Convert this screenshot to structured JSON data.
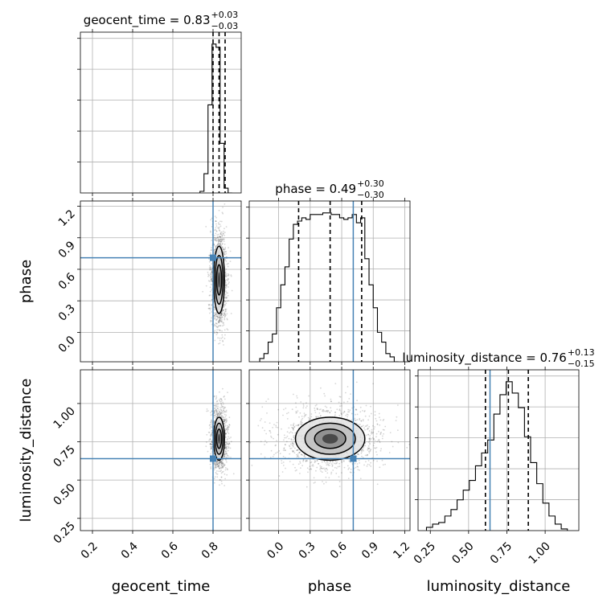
{
  "chart_data": {
    "type": "corner",
    "parameters": [
      "geocent_time",
      "phase",
      "luminosity_distance"
    ],
    "axis_labels": {
      "geocent_time": "geocent_time",
      "phase": "phase",
      "luminosity_distance": "luminosity_distance"
    },
    "ranges": {
      "geocent_time": [
        0.14,
        0.94
      ],
      "phase": [
        -0.28,
        1.25
      ],
      "luminosity_distance": [
        0.17,
        1.22
      ]
    },
    "ticks": {
      "geocent_time": [
        0.2,
        0.4,
        0.6,
        0.8
      ],
      "phase": [
        0.0,
        0.3,
        0.6,
        0.9,
        1.2
      ],
      "luminosity_distance": [
        0.25,
        0.5,
        0.75,
        1.0
      ]
    },
    "tick_labels": {
      "geocent_time": [
        "0.2",
        "0.4",
        "0.6",
        "0.8"
      ],
      "phase": [
        "0.0",
        "0.3",
        "0.6",
        "0.9",
        "1.2"
      ],
      "luminosity_distance": [
        "0.25",
        "0.50",
        "0.75",
        "1.00"
      ]
    },
    "truths": {
      "geocent_time": 0.8,
      "phase": 0.71,
      "luminosity_distance": 0.64
    },
    "titles": [
      {
        "param": "geocent_time",
        "main": "geocent_time = 0.83",
        "sup": "+0.03",
        "sub": "−0.03"
      },
      {
        "param": "phase",
        "main": "phase = 0.49",
        "sup": "+0.30",
        "sub": "−0.30"
      },
      {
        "param": "luminosity_distance",
        "main": "luminosity_distance = 0.76",
        "sup": "+0.13",
        "sub": "−0.15"
      }
    ],
    "quantiles": {
      "geocent_time": [
        0.8,
        0.83,
        0.86
      ],
      "phase": [
        0.19,
        0.49,
        0.79
      ],
      "luminosity_distance": [
        0.61,
        0.76,
        0.89
      ]
    },
    "histograms": {
      "geocent_time": {
        "edges": [
          0.735,
          0.755,
          0.775,
          0.795,
          0.815,
          0.835,
          0.855,
          0.875,
          0.895
        ],
        "counts": [
          0.01,
          0.12,
          0.55,
          0.93,
          0.91,
          0.31,
          0.03,
          0.0
        ]
      },
      "phase": {
        "edges": [
          -0.18,
          -0.14,
          -0.1,
          -0.06,
          -0.02,
          0.02,
          0.06,
          0.1,
          0.14,
          0.18,
          0.22,
          0.26,
          0.3,
          0.34,
          0.38,
          0.42,
          0.46,
          0.5,
          0.54,
          0.58,
          0.62,
          0.66,
          0.7,
          0.74,
          0.78,
          0.82,
          0.86,
          0.9,
          0.94,
          0.98,
          1.02,
          1.06,
          1.1,
          1.14
        ],
        "counts": [
          0.02,
          0.05,
          0.12,
          0.17,
          0.33,
          0.47,
          0.58,
          0.75,
          0.84,
          0.86,
          0.88,
          0.87,
          0.9,
          0.9,
          0.9,
          0.91,
          0.91,
          0.9,
          0.9,
          0.88,
          0.87,
          0.88,
          0.9,
          0.85,
          0.88,
          0.63,
          0.47,
          0.33,
          0.18,
          0.12,
          0.05,
          0.03,
          0.0
        ]
      },
      "luminosity_distance": {
        "edges": [
          0.225,
          0.265,
          0.305,
          0.345,
          0.385,
          0.425,
          0.465,
          0.505,
          0.545,
          0.585,
          0.625,
          0.665,
          0.705,
          0.745,
          0.785,
          0.825,
          0.865,
          0.905,
          0.945,
          0.985,
          1.025,
          1.065,
          1.105,
          1.145
        ],
        "counts": [
          0.02,
          0.04,
          0.05,
          0.09,
          0.13,
          0.19,
          0.25,
          0.31,
          0.4,
          0.48,
          0.56,
          0.72,
          0.84,
          0.92,
          0.85,
          0.76,
          0.58,
          0.42,
          0.29,
          0.17,
          0.09,
          0.04,
          0.01
        ]
      }
    },
    "joint_2d": [
      {
        "x": "geocent_time",
        "y": "phase",
        "center": [
          0.83,
          0.5
        ],
        "spread": [
          0.027,
          0.32
        ]
      },
      {
        "x": "geocent_time",
        "y": "luminosity_distance",
        "center": [
          0.83,
          0.77
        ],
        "spread": [
          0.027,
          0.14
        ]
      },
      {
        "x": "phase",
        "y": "luminosity_distance",
        "center": [
          0.49,
          0.77
        ],
        "spread": [
          0.33,
          0.14
        ]
      }
    ],
    "grid": true
  }
}
